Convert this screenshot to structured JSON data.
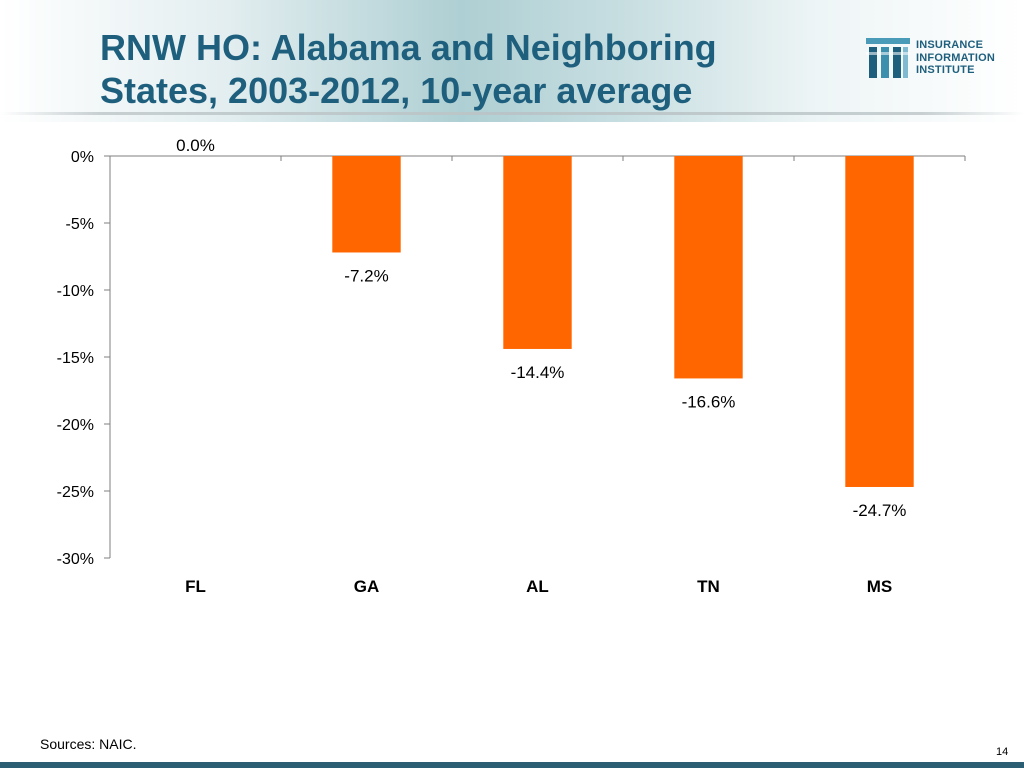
{
  "slide": {
    "title_line1": "RNW HO: Alabama and Neighboring",
    "title_line2": "States, 2003-2012, 10-year average",
    "source": "Sources: NAIC.",
    "page_number": "14",
    "logo": {
      "line1": "INSURANCE",
      "line2": "INFORMATION",
      "line3": "INSTITUTE",
      "icon": "iii-logo-icon"
    }
  },
  "colors": {
    "title": "#1f5f7e",
    "bar": "#ff6600",
    "bottom_bar": "#2b5d73"
  },
  "chart_data": {
    "type": "bar",
    "title": "",
    "xlabel": "",
    "ylabel": "",
    "categories": [
      "FL",
      "GA",
      "AL",
      "TN",
      "MS"
    ],
    "values": [
      0.0,
      -7.2,
      -14.4,
      -16.6,
      -24.7
    ],
    "data_labels": [
      "0.0%",
      "-7.2%",
      "-14.4%",
      "-16.6%",
      "-24.7%"
    ],
    "ylim": [
      -30,
      0
    ],
    "yticks": [
      0,
      -5,
      -10,
      -15,
      -20,
      -25,
      -30
    ],
    "ytick_labels": [
      "0%",
      "-5%",
      "-10%",
      "-15%",
      "-20%",
      "-25%",
      "-30%"
    ],
    "grid": false,
    "legend": "none"
  }
}
